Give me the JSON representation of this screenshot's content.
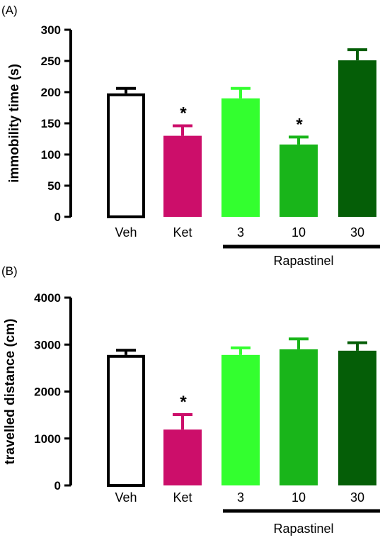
{
  "chart_data": [
    {
      "type": "bar",
      "panel_label": "(A)",
      "ylabel": "immobility time (s)",
      "xlabel": "",
      "ylim": [
        0,
        300
      ],
      "yticks": [
        0,
        50,
        100,
        150,
        200,
        250,
        300
      ],
      "grid": false,
      "categories": [
        "Veh",
        "Ket",
        "3",
        "10",
        "30"
      ],
      "values": [
        198,
        130,
        190,
        116,
        251
      ],
      "errors": [
        8,
        16,
        16,
        12,
        17
      ],
      "colors": [
        "#ffffff",
        "#cc0e6a",
        "#33ff2f",
        "#19b51a",
        "#055e07"
      ],
      "significance": [
        "",
        "*",
        "",
        "*",
        ""
      ],
      "group_label": "Rapastinel"
    },
    {
      "type": "bar",
      "panel_label": "(B)",
      "ylabel": "travelled distance (cm)",
      "xlabel": "",
      "ylim": [
        0,
        4000
      ],
      "yticks": [
        0,
        1000,
        2000,
        3000,
        4000
      ],
      "grid": false,
      "categories": [
        "Veh",
        "Ket",
        "3",
        "10",
        "30"
      ],
      "values": [
        2780,
        1190,
        2780,
        2900,
        2870
      ],
      "errors": [
        100,
        320,
        150,
        220,
        170
      ],
      "colors": [
        "#ffffff",
        "#cc0e6a",
        "#33ff2f",
        "#19b51a",
        "#055e07"
      ],
      "significance": [
        "",
        "*",
        "",
        "",
        ""
      ],
      "group_label": "Rapastinel"
    }
  ]
}
